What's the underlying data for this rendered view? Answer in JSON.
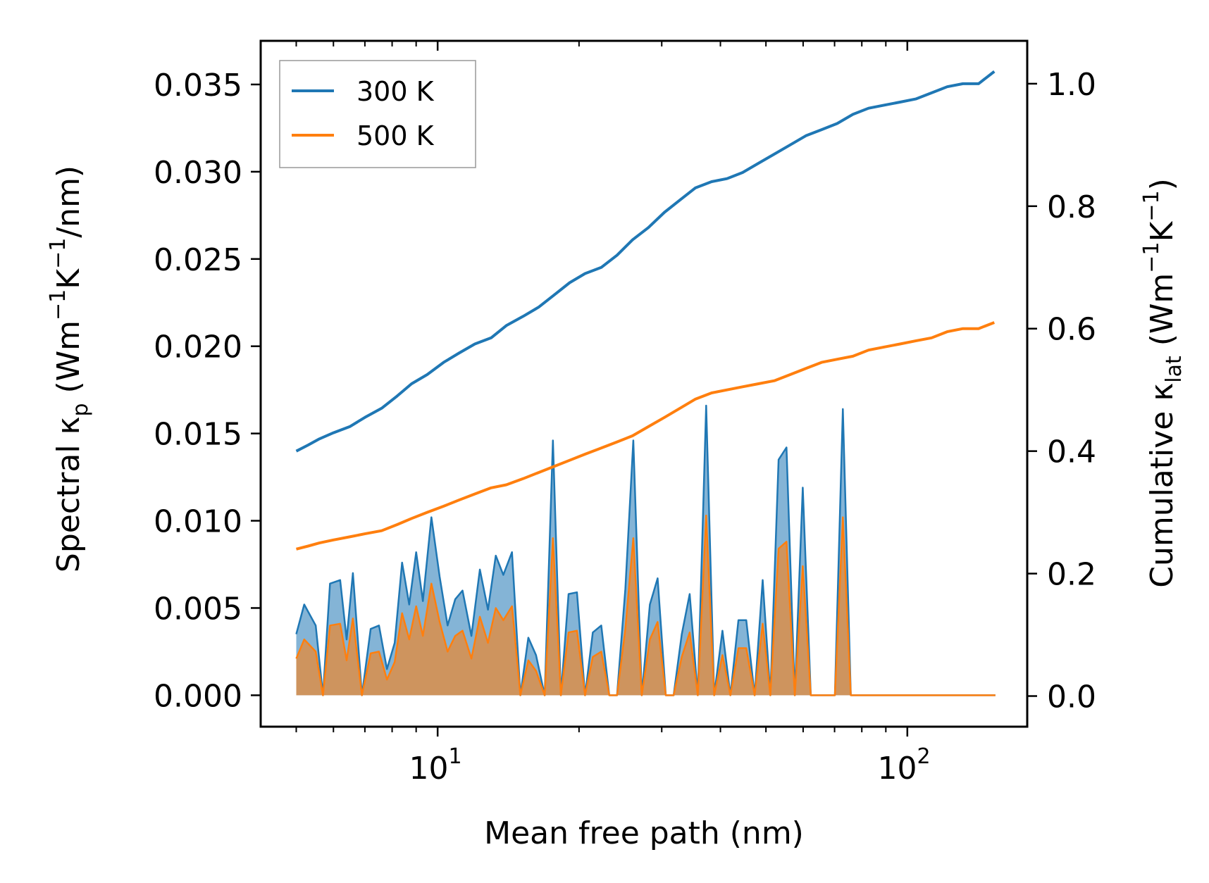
{
  "chart_data": {
    "type": "line",
    "title": "",
    "xlabel": "Mean free path (nm)",
    "xscale": "log",
    "xlim": [
      4.2,
      180
    ],
    "x_major_ticks": [
      10,
      100
    ],
    "x_major_tick_labels": [
      {
        "base": "10",
        "exp": "1"
      },
      {
        "base": "10",
        "exp": "2"
      }
    ],
    "ylabel_left": {
      "main": "Spectral κ",
      "sub": "p",
      "unit_open": " (Wm",
      "sup1": "−1",
      "mid": "K",
      "sup2": "−1",
      "unit_close": "/nm)"
    },
    "ylabel_right": {
      "main": "Cumulative κ",
      "sub": "lat",
      "unit_open": " (Wm",
      "sup1": "−1",
      "mid": "K",
      "sup2": "−1",
      "unit_close": ")"
    },
    "ylim_left": [
      -0.0018,
      0.0375
    ],
    "ylim_right": [
      -0.05,
      1.07
    ],
    "yticks_left": [
      "0.000",
      "0.005",
      "0.010",
      "0.015",
      "0.020",
      "0.025",
      "0.030",
      "0.035"
    ],
    "yticks_right": [
      "0.0",
      "0.2",
      "0.4",
      "0.6",
      "0.8",
      "1.0"
    ],
    "legend": {
      "position": "top-left",
      "entries": [
        "300 K",
        "500 K"
      ]
    },
    "colors": {
      "300 K": "#1f77b4",
      "500 K": "#ff7f0e"
    },
    "series": [
      {
        "name": "300 K",
        "kind": "spectral",
        "axis": "left",
        "x": [
          5.0,
          5.2,
          5.5,
          5.7,
          5.9,
          6.2,
          6.4,
          6.6,
          6.9,
          7.2,
          7.5,
          7.8,
          8.1,
          8.4,
          8.7,
          9.0,
          9.3,
          9.7,
          10.1,
          10.5,
          10.9,
          11.3,
          11.8,
          12.3,
          12.8,
          13.3,
          13.8,
          14.4,
          15.0,
          15.6,
          16.2,
          16.9,
          17.6,
          18.3,
          19.0,
          19.8,
          20.6,
          21.4,
          22.3,
          23.2,
          24.1,
          25.1,
          26.1,
          27.2,
          28.3,
          29.4,
          30.6,
          31.8,
          33.1,
          34.4,
          35.8,
          37.3,
          38.8,
          40.4,
          42.0,
          43.7,
          45.4,
          47.3,
          49.2,
          51.1,
          53.2,
          55.3,
          57.6,
          59.9,
          62.3,
          64.8,
          67.4,
          70.1,
          72.9,
          75.8,
          78.9,
          82.0,
          85.3,
          88.8,
          92.3,
          96.0,
          99.9,
          103.9,
          108.1,
          112.4,
          116.9,
          121.6,
          126.5,
          131.6,
          136.9,
          142.4,
          148.1,
          154.0
        ],
        "y": [
          0.0035,
          0.0052,
          0.004,
          0.0,
          0.0064,
          0.0066,
          0.0032,
          0.007,
          0.0,
          0.0038,
          0.004,
          0.0015,
          0.003,
          0.0076,
          0.0052,
          0.0082,
          0.0054,
          0.0102,
          0.0068,
          0.004,
          0.0055,
          0.006,
          0.0034,
          0.0072,
          0.0049,
          0.008,
          0.0069,
          0.0082,
          0.0,
          0.0033,
          0.0023,
          0.0,
          0.0146,
          0.0,
          0.0058,
          0.0059,
          0.0,
          0.0036,
          0.004,
          0.0,
          0.0,
          0.0061,
          0.0146,
          0.0,
          0.0052,
          0.0067,
          0.0,
          0.0,
          0.0035,
          0.0058,
          0.0,
          0.0166,
          0.0,
          0.0037,
          0.0,
          0.0043,
          0.0043,
          0.0,
          0.0066,
          0.0,
          0.0135,
          0.0142,
          0.0,
          0.0119,
          0.0,
          0.0,
          0.0,
          0.0,
          0.0164,
          0.0,
          0.0,
          0.0,
          0.0,
          0.0,
          0.0,
          0.0,
          0.0,
          0.0,
          0.0,
          0.0,
          0.0,
          0.0,
          0.0,
          0.0,
          0.0,
          0.0,
          0.0,
          0.0
        ]
      },
      {
        "name": "500 K",
        "kind": "spectral",
        "axis": "left",
        "x": [
          5.0,
          5.2,
          5.5,
          5.7,
          5.9,
          6.2,
          6.4,
          6.6,
          6.9,
          7.2,
          7.5,
          7.8,
          8.1,
          8.4,
          8.7,
          9.0,
          9.3,
          9.7,
          10.1,
          10.5,
          10.9,
          11.3,
          11.8,
          12.3,
          12.8,
          13.3,
          13.8,
          14.4,
          15.0,
          15.6,
          16.2,
          16.9,
          17.6,
          18.3,
          19.0,
          19.8,
          20.6,
          21.4,
          22.3,
          23.2,
          24.1,
          25.1,
          26.1,
          27.2,
          28.3,
          29.4,
          30.6,
          31.8,
          33.1,
          34.4,
          35.8,
          37.3,
          38.8,
          40.4,
          42.0,
          43.7,
          45.4,
          47.3,
          49.2,
          51.1,
          53.2,
          55.3,
          57.6,
          59.9,
          62.3,
          64.8,
          67.4,
          70.1,
          72.9,
          75.8,
          78.9,
          82.0,
          85.3,
          88.8,
          92.3,
          96.0,
          99.9,
          103.9,
          108.1,
          112.4,
          116.9,
          121.6,
          126.5,
          131.6,
          136.9,
          142.4,
          148.1,
          154.0
        ],
        "y": [
          0.0021,
          0.0032,
          0.0025,
          0.0,
          0.004,
          0.0041,
          0.002,
          0.0044,
          0.0,
          0.0024,
          0.0025,
          0.0009,
          0.0019,
          0.0047,
          0.0032,
          0.0051,
          0.0034,
          0.0064,
          0.0042,
          0.0025,
          0.0034,
          0.0037,
          0.0021,
          0.0045,
          0.003,
          0.005,
          0.0043,
          0.0051,
          0.0,
          0.002,
          0.0014,
          0.0,
          0.009,
          0.0,
          0.0036,
          0.0037,
          0.0,
          0.0022,
          0.0025,
          0.0,
          0.0,
          0.0038,
          0.009,
          0.0,
          0.0032,
          0.0042,
          0.0,
          0.0,
          0.0022,
          0.0036,
          0.0,
          0.0103,
          0.0,
          0.0023,
          0.0,
          0.0027,
          0.0027,
          0.0,
          0.0041,
          0.0,
          0.0084,
          0.0088,
          0.0,
          0.0074,
          0.0,
          0.0,
          0.0,
          0.0,
          0.0102,
          0.0,
          0.0,
          0.0,
          0.0,
          0.0,
          0.0,
          0.0,
          0.0,
          0.0,
          0.0,
          0.0,
          0.0,
          0.0,
          0.0,
          0.0,
          0.0,
          0.0,
          0.0,
          0.0
        ]
      },
      {
        "name": "300 K",
        "kind": "cumulative",
        "axis": "right",
        "x": [
          5.0,
          5.3,
          5.6,
          6.0,
          6.5,
          7.0,
          7.6,
          8.2,
          8.8,
          9.5,
          10.3,
          11.1,
          12.0,
          13.0,
          14.0,
          15.2,
          16.4,
          17.7,
          19.1,
          20.6,
          22.3,
          24.1,
          26.0,
          28.1,
          30.4,
          32.8,
          35.4,
          38.3,
          41.3,
          44.6,
          48.2,
          52.1,
          56.3,
          60.8,
          65.7,
          70.9,
          76.6,
          82.7,
          89.3,
          96.5,
          104.2,
          112.6,
          121.6,
          131.3,
          141.8,
          153.2
        ],
        "y": [
          0.4,
          0.41,
          0.42,
          0.43,
          0.44,
          0.455,
          0.47,
          0.49,
          0.51,
          0.525,
          0.545,
          0.56,
          0.575,
          0.585,
          0.605,
          0.62,
          0.635,
          0.655,
          0.675,
          0.69,
          0.7,
          0.72,
          0.745,
          0.765,
          0.79,
          0.81,
          0.83,
          0.84,
          0.845,
          0.855,
          0.87,
          0.885,
          0.9,
          0.915,
          0.925,
          0.935,
          0.95,
          0.96,
          0.965,
          0.97,
          0.975,
          0.985,
          0.995,
          1.0,
          1.0,
          1.02
        ]
      },
      {
        "name": "500 K",
        "kind": "cumulative",
        "axis": "right",
        "x": [
          5.0,
          5.3,
          5.6,
          6.0,
          6.5,
          7.0,
          7.6,
          8.2,
          8.8,
          9.5,
          10.3,
          11.1,
          12.0,
          13.0,
          14.0,
          15.2,
          16.4,
          17.7,
          19.1,
          20.6,
          22.3,
          24.1,
          26.0,
          28.1,
          30.4,
          32.8,
          35.4,
          38.3,
          41.3,
          44.6,
          48.2,
          52.1,
          56.3,
          60.8,
          65.7,
          70.9,
          76.6,
          82.7,
          89.3,
          96.5,
          104.2,
          112.6,
          121.6,
          131.3,
          141.8,
          153.2
        ],
        "y": [
          0.24,
          0.245,
          0.25,
          0.255,
          0.26,
          0.265,
          0.27,
          0.28,
          0.29,
          0.3,
          0.31,
          0.32,
          0.33,
          0.34,
          0.345,
          0.355,
          0.365,
          0.375,
          0.385,
          0.395,
          0.405,
          0.415,
          0.425,
          0.44,
          0.455,
          0.47,
          0.485,
          0.495,
          0.5,
          0.505,
          0.51,
          0.515,
          0.525,
          0.535,
          0.545,
          0.55,
          0.555,
          0.565,
          0.57,
          0.575,
          0.58,
          0.585,
          0.595,
          0.6,
          0.6,
          0.61
        ]
      }
    ]
  }
}
